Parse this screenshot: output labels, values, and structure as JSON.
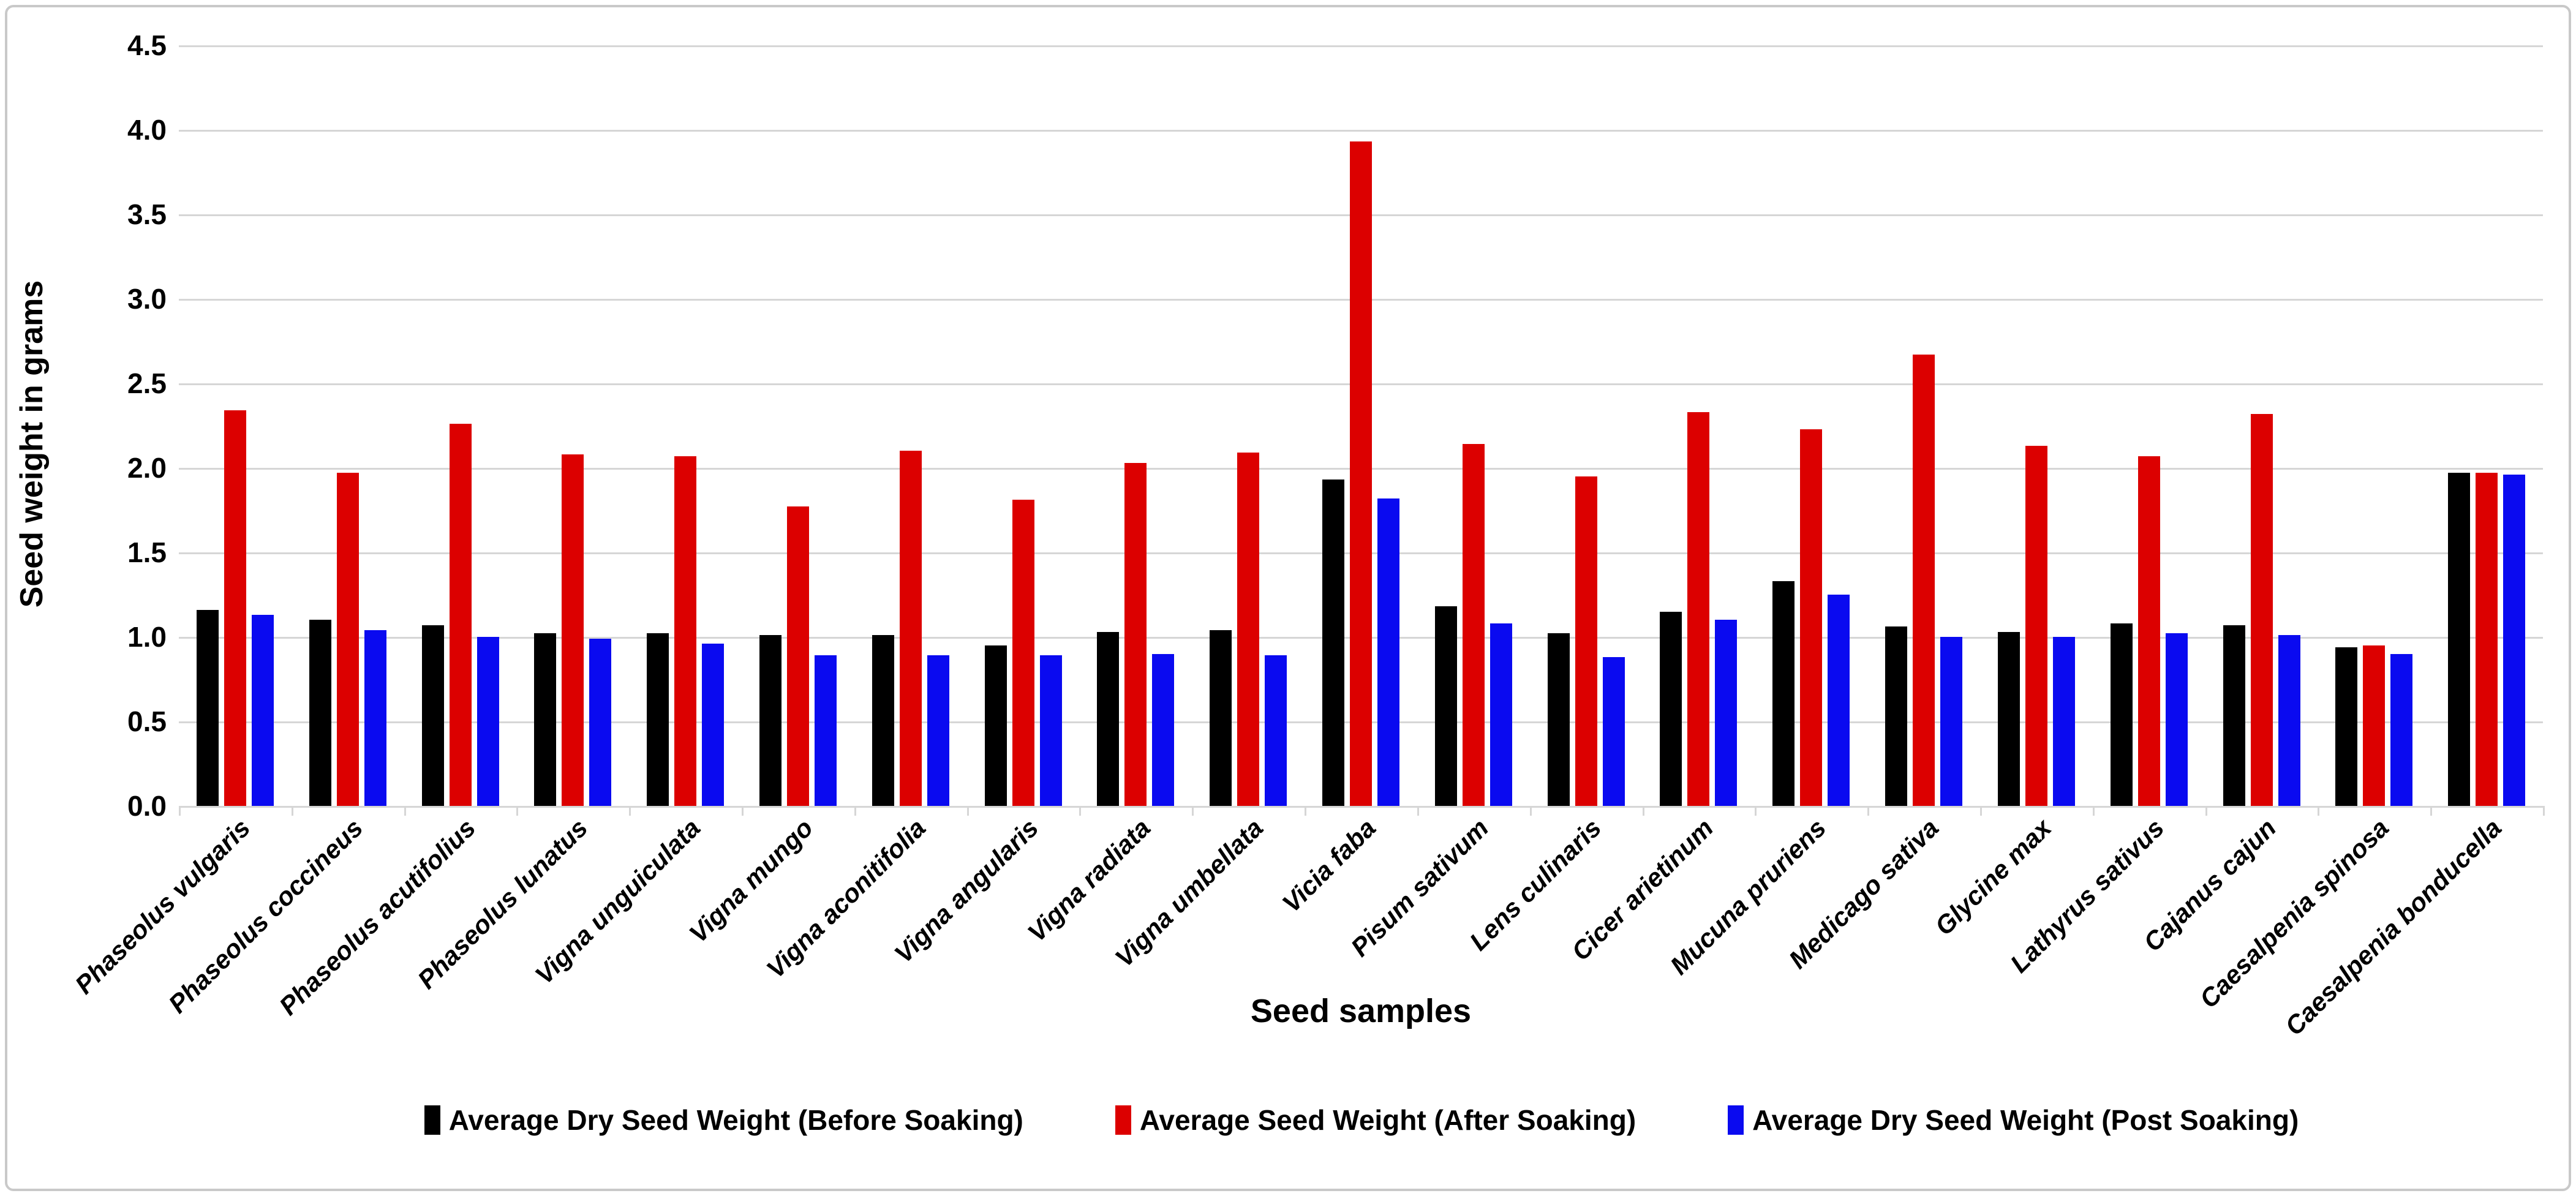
{
  "chart_data": {
    "type": "bar",
    "title": "",
    "xlabel": "Seed samples",
    "ylabel": "Seed weight in grams",
    "ylim": [
      0,
      4.5
    ],
    "ytick_step": 0.5,
    "ytick_labels": [
      "0.0",
      "0.5",
      "1.0",
      "1.5",
      "2.0",
      "2.5",
      "3.0",
      "3.5",
      "4.0",
      "4.5"
    ],
    "grid": true,
    "legend_position": "bottom",
    "categories": [
      "Phaseolus vulgaris",
      "Phaseolus coccineus",
      "Phaseolus acutifolius",
      "Phaseolus lunatus",
      "Vigna unguiculata",
      "Vigna mungo",
      "Vigna aconitifolia",
      "Vigna angularis",
      "Vigna radiata",
      "Vigna umbellata",
      "Vicia faba",
      "Pisum sativum",
      "Lens culinaris",
      "Cicer arietinum",
      "Mucuna pruriens",
      "Medicago sativa",
      "Glycine max",
      "Lathyrus sativus",
      "Cajanus cajun",
      "Caesalpenia spinosa",
      "Caesalpenia bonducella"
    ],
    "series": [
      {
        "name": "Average Dry Seed Weight (Before Soaking)",
        "color": "#000000",
        "values": [
          1.16,
          1.1,
          1.07,
          1.02,
          1.02,
          1.01,
          1.01,
          0.95,
          1.03,
          1.04,
          1.93,
          1.18,
          1.02,
          1.15,
          1.33,
          1.06,
          1.03,
          1.08,
          1.07,
          0.94,
          1.97
        ]
      },
      {
        "name": "Average Seed Weight (After Soaking)",
        "color": "#dc0000",
        "values": [
          2.34,
          1.97,
          2.26,
          2.08,
          2.07,
          1.77,
          2.1,
          1.81,
          2.03,
          2.09,
          3.93,
          2.14,
          1.95,
          2.33,
          2.23,
          2.67,
          2.13,
          2.07,
          2.32,
          0.95,
          1.97
        ]
      },
      {
        "name": "Average Dry Seed Weight (Post Soaking)",
        "color": "#0a0af0",
        "values": [
          1.13,
          1.04,
          1.0,
          0.99,
          0.96,
          0.89,
          0.89,
          0.89,
          0.9,
          0.89,
          1.82,
          1.08,
          0.88,
          1.1,
          1.25,
          1.0,
          1.0,
          1.02,
          1.01,
          0.9,
          1.96
        ]
      }
    ]
  },
  "colors": {
    "gridline": "#d6d6d6",
    "frame_border": "#c9c9c9",
    "background": "#ffffff",
    "text": "#000000"
  }
}
